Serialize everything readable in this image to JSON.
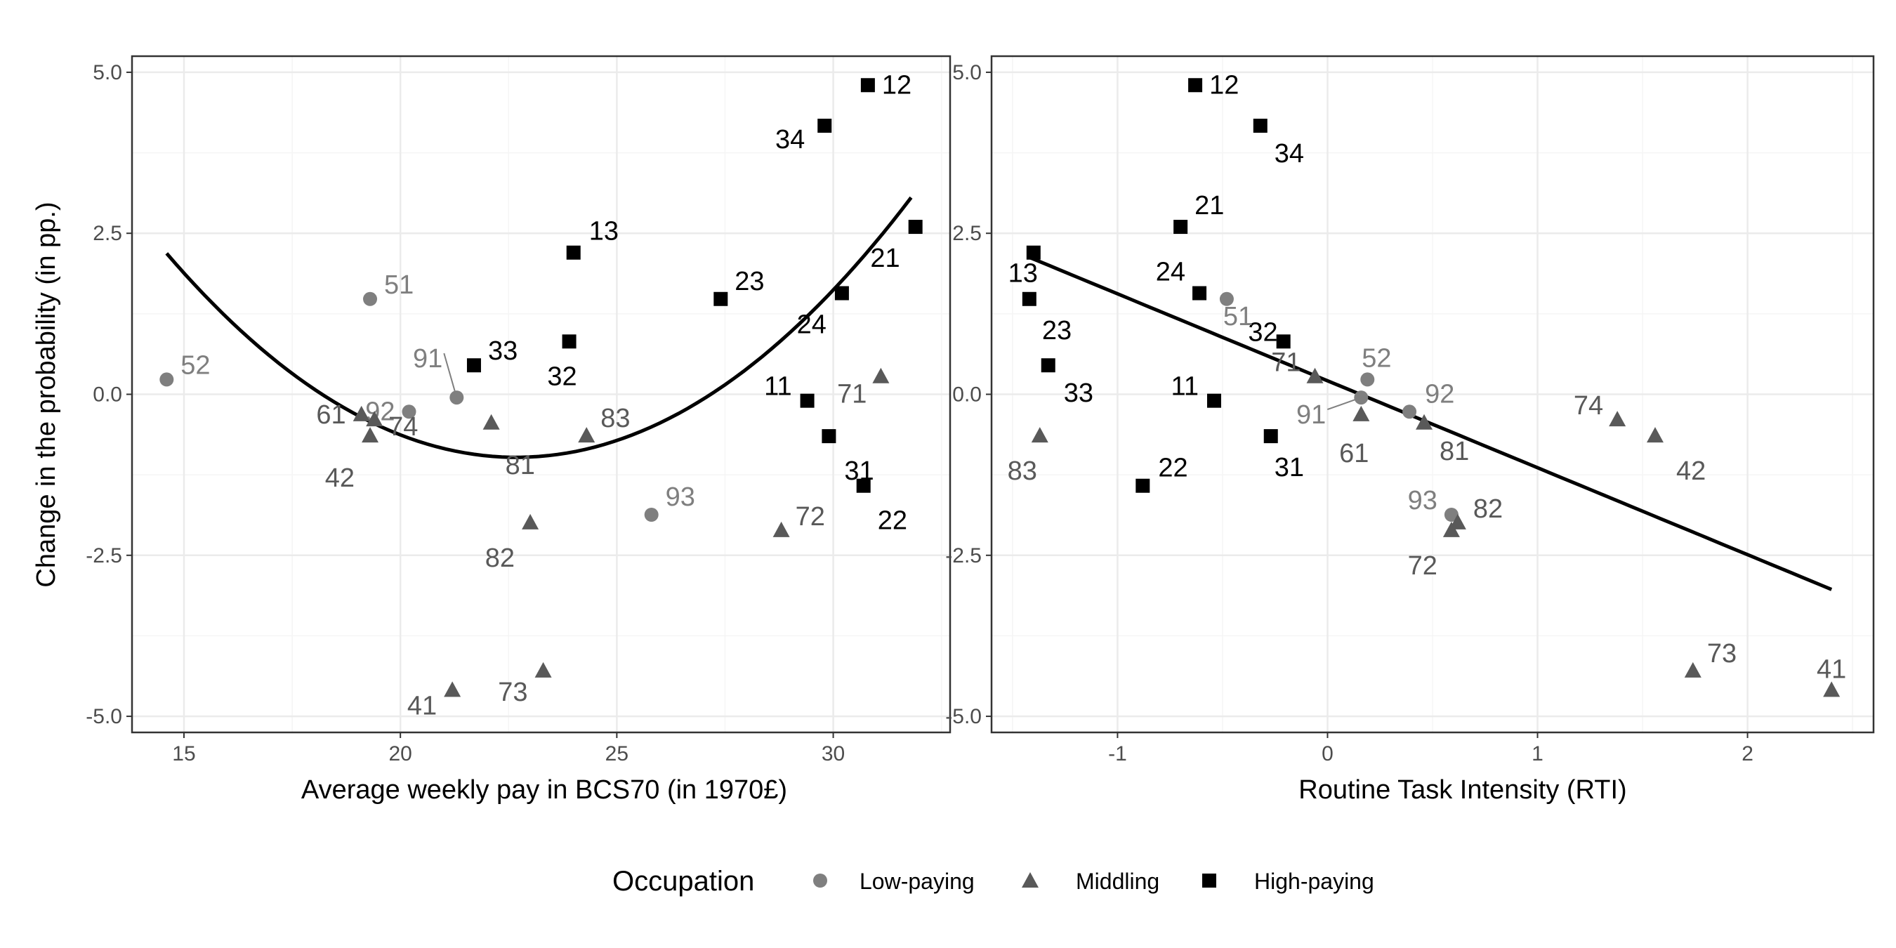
{
  "chart_data": [
    {
      "type": "scatter",
      "xlabel": "Average weekly pay in BCS70 (in 1970£)",
      "ylabel": "Change in the probability (in pp.)",
      "xlim": [
        13.8,
        32.7
      ],
      "ylim": [
        -5.25,
        5.25
      ],
      "xticks": [
        15,
        20,
        25,
        30
      ],
      "xtick_labels": [
        "15",
        "20",
        "25",
        "30"
      ],
      "yticks": [
        -5,
        -2.5,
        0,
        2.5,
        5
      ],
      "ytick_labels": [
        "-5.0",
        "-2.5",
        "0.0",
        "2.5",
        "5.0"
      ],
      "grid": true,
      "fit": {
        "type": "quadratic",
        "coefficients": [
          23.97,
          -2.2,
          0.0485
        ],
        "x_range": [
          14.6,
          31.8
        ]
      },
      "points": [
        {
          "label": "52",
          "group": "low",
          "x": 14.6,
          "y": 0.23
        },
        {
          "label": "51",
          "group": "low",
          "x": 19.3,
          "y": 1.48
        },
        {
          "label": "92",
          "group": "low",
          "x": 20.2,
          "y": -0.27
        },
        {
          "label": "91",
          "group": "low",
          "x": 21.3,
          "y": -0.05
        },
        {
          "label": "93",
          "group": "low",
          "x": 25.8,
          "y": -1.87
        },
        {
          "label": "61",
          "group": "mid",
          "x": 19.1,
          "y": -0.32
        },
        {
          "label": "42",
          "group": "mid",
          "x": 19.3,
          "y": -0.65
        },
        {
          "label": "74",
          "group": "mid",
          "x": 19.4,
          "y": -0.4
        },
        {
          "label": "81",
          "group": "mid",
          "x": 22.1,
          "y": -0.45
        },
        {
          "label": "82",
          "group": "mid",
          "x": 23.0,
          "y": -2.0
        },
        {
          "label": "83",
          "group": "mid",
          "x": 24.3,
          "y": -0.65
        },
        {
          "label": "41",
          "group": "mid",
          "x": 21.2,
          "y": -4.6
        },
        {
          "label": "73",
          "group": "mid",
          "x": 23.3,
          "y": -4.3
        },
        {
          "label": "72",
          "group": "mid",
          "x": 28.8,
          "y": -2.12
        },
        {
          "label": "71",
          "group": "mid",
          "x": 31.1,
          "y": 0.27
        },
        {
          "label": "33",
          "group": "high",
          "x": 21.7,
          "y": 0.45
        },
        {
          "label": "13",
          "group": "high",
          "x": 24.0,
          "y": 2.2
        },
        {
          "label": "32",
          "group": "high",
          "x": 23.9,
          "y": 0.82
        },
        {
          "label": "23",
          "group": "high",
          "x": 27.4,
          "y": 1.48
        },
        {
          "label": "24",
          "group": "high",
          "x": 30.2,
          "y": 1.57
        },
        {
          "label": "11",
          "group": "high",
          "x": 29.4,
          "y": -0.1
        },
        {
          "label": "31",
          "group": "high",
          "x": 29.9,
          "y": -0.65
        },
        {
          "label": "22",
          "group": "high",
          "x": 30.7,
          "y": -1.42
        },
        {
          "label": "34",
          "group": "high",
          "x": 29.8,
          "y": 4.17
        },
        {
          "label": "12",
          "group": "high",
          "x": 30.8,
          "y": 4.8
        },
        {
          "label": "21",
          "group": "high",
          "x": 31.9,
          "y": 2.6
        }
      ]
    },
    {
      "type": "scatter",
      "xlabel": "Routine Task Intensity (RTI)",
      "ylabel": "",
      "xlim": [
        -1.6,
        2.6
      ],
      "ylim": [
        -5.25,
        5.25
      ],
      "xticks": [
        -1,
        0,
        1,
        2
      ],
      "xtick_labels": [
        "-1",
        "0",
        "1",
        "2"
      ],
      "yticks": [
        -5,
        -2.5,
        0,
        2.5,
        5
      ],
      "ytick_labels": [
        "-5.0",
        "-2.5",
        "0.0",
        "2.5",
        "5.0"
      ],
      "grid": true,
      "fit": {
        "type": "linear",
        "coefficients": [
          0.21,
          -1.35
        ],
        "x_range": [
          -1.42,
          2.4
        ]
      },
      "points": [
        {
          "label": "12",
          "group": "high",
          "x": -0.63,
          "y": 4.8
        },
        {
          "label": "34",
          "group": "high",
          "x": -0.32,
          "y": 4.17
        },
        {
          "label": "21",
          "group": "high",
          "x": -0.7,
          "y": 2.6
        },
        {
          "label": "13",
          "group": "high",
          "x": -1.4,
          "y": 2.2
        },
        {
          "label": "24",
          "group": "high",
          "x": -0.61,
          "y": 1.57
        },
        {
          "label": "23",
          "group": "high",
          "x": -1.42,
          "y": 1.48
        },
        {
          "label": "32",
          "group": "high",
          "x": -0.21,
          "y": 0.82
        },
        {
          "label": "33",
          "group": "high",
          "x": -1.33,
          "y": 0.45
        },
        {
          "label": "11",
          "group": "high",
          "x": -0.54,
          "y": -0.1
        },
        {
          "label": "31",
          "group": "high",
          "x": -0.27,
          "y": -0.65
        },
        {
          "label": "22",
          "group": "high",
          "x": -0.88,
          "y": -1.42
        },
        {
          "label": "51",
          "group": "low",
          "x": -0.48,
          "y": 1.48
        },
        {
          "label": "52",
          "group": "low",
          "x": 0.19,
          "y": 0.23
        },
        {
          "label": "91",
          "group": "low",
          "x": 0.16,
          "y": -0.05
        },
        {
          "label": "92",
          "group": "low",
          "x": 0.39,
          "y": -0.27
        },
        {
          "label": "93",
          "group": "low",
          "x": 0.59,
          "y": -1.87
        },
        {
          "label": "71",
          "group": "mid",
          "x": -0.06,
          "y": 0.27
        },
        {
          "label": "61",
          "group": "mid",
          "x": 0.16,
          "y": -0.32
        },
        {
          "label": "81",
          "group": "mid",
          "x": 0.46,
          "y": -0.45
        },
        {
          "label": "83",
          "group": "mid",
          "x": -1.37,
          "y": -0.65
        },
        {
          "label": "74",
          "group": "mid",
          "x": 1.38,
          "y": -0.4
        },
        {
          "label": "42",
          "group": "mid",
          "x": 1.56,
          "y": -0.65
        },
        {
          "label": "82",
          "group": "mid",
          "x": 0.62,
          "y": -2.0
        },
        {
          "label": "72",
          "group": "mid",
          "x": 0.59,
          "y": -2.12
        },
        {
          "label": "73",
          "group": "mid",
          "x": 1.74,
          "y": -4.3
        },
        {
          "label": "41",
          "group": "mid",
          "x": 2.4,
          "y": -4.6
        }
      ]
    }
  ],
  "legend": {
    "title": "Occupation",
    "placement": "bottom",
    "entries": [
      {
        "group": "low",
        "label": "Low-paying",
        "shape": "circle",
        "color": "#7f7f7f"
      },
      {
        "group": "mid",
        "label": "Middling",
        "shape": "triangle",
        "color": "#595959"
      },
      {
        "group": "high",
        "label": "High-paying",
        "shape": "square",
        "color": "#000000"
      }
    ]
  },
  "colors": {
    "low": "#7f7f7f",
    "mid": "#595959",
    "high": "#000000",
    "label_low": "#7f7f7f",
    "label_mid": "#595959",
    "label_high": "#000000",
    "fit_line": "#000000",
    "grid_major": "#ebebeb",
    "grid_minor": "#f5f5f5",
    "panel_border": "#333333"
  }
}
